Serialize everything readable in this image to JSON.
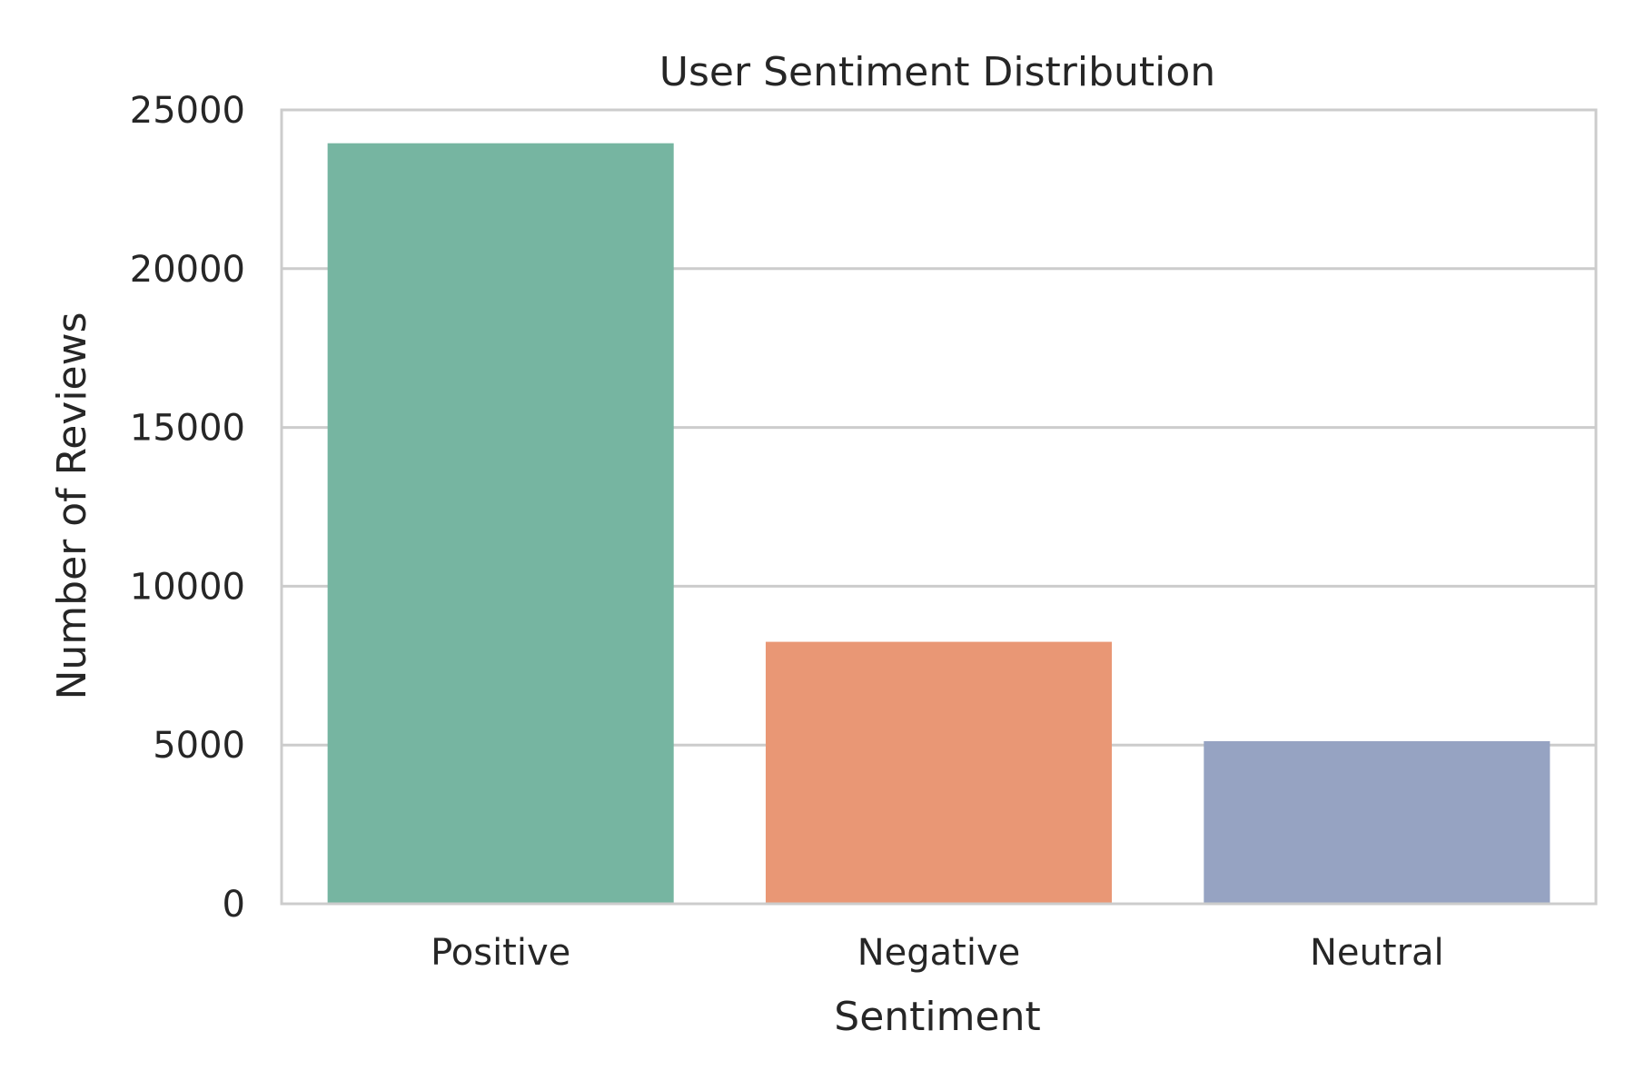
{
  "chart_data": {
    "type": "bar",
    "title": "User Sentiment Distribution",
    "xlabel": "Sentiment",
    "ylabel": "Number of Reviews",
    "categories": [
      "Positive",
      "Negative",
      "Neutral"
    ],
    "values": [
      23950,
      8250,
      5120
    ],
    "colors": [
      "#76b5a1",
      "#e99775",
      "#96a3c2"
    ],
    "ylim": [
      0,
      25000
    ],
    "yticks": [
      0,
      5000,
      10000,
      15000,
      20000,
      25000
    ],
    "ytick_labels": [
      "0",
      "5000",
      "10000",
      "15000",
      "20000",
      "25000"
    ],
    "grid": true,
    "grid_color": "#cccccc",
    "spine_color": "#cccccc",
    "text_color": "#262626",
    "legend": false
  }
}
